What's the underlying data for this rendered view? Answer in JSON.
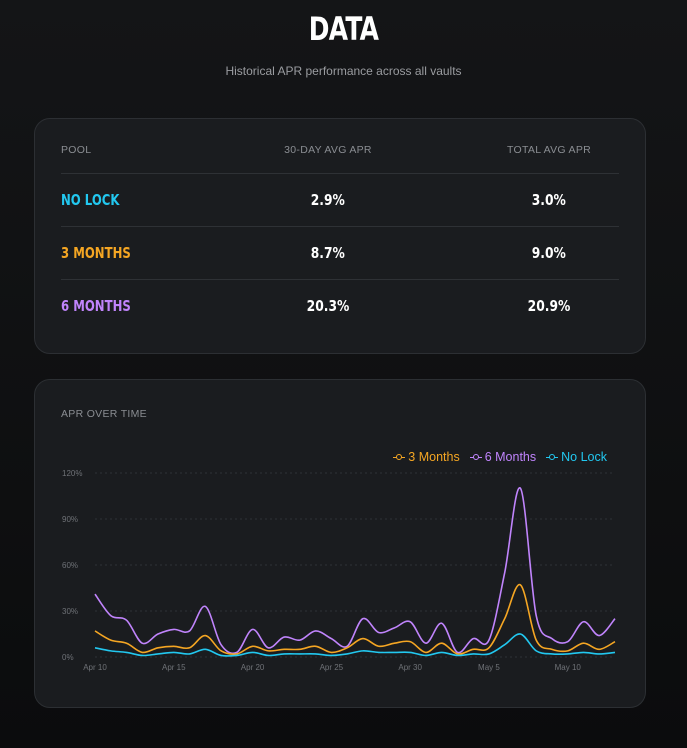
{
  "header": {
    "title": "DATA",
    "subtitle": "Historical APR performance across all vaults"
  },
  "table": {
    "headers": [
      "POOL",
      "30-DAY AVG APR",
      "TOTAL AVG APR"
    ],
    "rows": [
      {
        "pool": "NO LOCK",
        "color": "#22c8f0",
        "avg30": "2.9%",
        "total": "3.0%"
      },
      {
        "pool": "3 MONTHS",
        "color": "#f5a623",
        "avg30": "8.7%",
        "total": "9.0%"
      },
      {
        "pool": "6 MONTHS",
        "color": "#c084fc",
        "avg30": "20.3%",
        "total": "20.9%"
      }
    ]
  },
  "chart": {
    "title": "APR OVER TIME"
  },
  "chart_data": {
    "type": "line",
    "x_ticks": [
      "Apr 10",
      "Apr 15",
      "Apr 20",
      "Apr 25",
      "Apr 30",
      "May 5",
      "May 10"
    ],
    "x": [
      "Apr 10",
      "Apr 11",
      "Apr 12",
      "Apr 13",
      "Apr 14",
      "Apr 15",
      "Apr 16",
      "Apr 17",
      "Apr 18",
      "Apr 19",
      "Apr 20",
      "Apr 21",
      "Apr 22",
      "Apr 23",
      "Apr 24",
      "Apr 25",
      "Apr 26",
      "Apr 27",
      "Apr 28",
      "Apr 29",
      "Apr 30",
      "May 1",
      "May 2",
      "May 3",
      "May 4",
      "May 5",
      "May 6",
      "May 7",
      "May 8",
      "May 9",
      "May 10",
      "May 11",
      "May 12",
      "May 13"
    ],
    "ylim": [
      0,
      120
    ],
    "y_ticks": [
      "0%",
      "30%",
      "60%",
      "90%",
      "120%"
    ],
    "grid": true,
    "legend_position": "top-right",
    "series": [
      {
        "name": "3 Months",
        "color": "#f5a623",
        "values": [
          17,
          11,
          9,
          3,
          6,
          7,
          6,
          14,
          4,
          2,
          7,
          4,
          5,
          5,
          7,
          3,
          6,
          12,
          7,
          9,
          10,
          3,
          9,
          2,
          5,
          6,
          25,
          47,
          11,
          5,
          4,
          9,
          5,
          10
        ]
      },
      {
        "name": "6 Months",
        "color": "#c084fc",
        "values": [
          41,
          27,
          24,
          9,
          15,
          18,
          17,
          33,
          8,
          3,
          18,
          6,
          13,
          11,
          17,
          12,
          7,
          25,
          16,
          19,
          23,
          9,
          22,
          3,
          12,
          11,
          55,
          110,
          27,
          12,
          10,
          23,
          14,
          25
        ]
      },
      {
        "name": "No Lock",
        "color": "#22c8f0",
        "values": [
          6,
          4,
          3,
          1,
          2,
          3,
          2,
          5,
          1,
          1,
          3,
          1,
          2,
          2,
          2,
          1,
          2,
          4,
          3,
          3,
          3,
          1,
          3,
          1,
          2,
          2,
          8,
          15,
          4,
          2,
          2,
          3,
          2,
          3
        ]
      }
    ]
  }
}
